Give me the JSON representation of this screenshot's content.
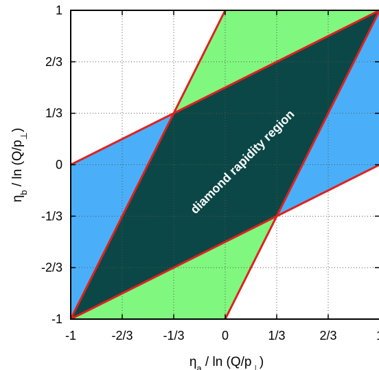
{
  "chart_data": {
    "type": "area",
    "xlabel": "η_a / ln (Q/p_⊥)",
    "ylabel": "η_b / ln (Q/p_⊥)",
    "xlim": [
      -1,
      1
    ],
    "ylim": [
      -1,
      1
    ],
    "grid": true,
    "x_ticks": [
      {
        "value": -1,
        "label": "-1"
      },
      {
        "value": -0.6667,
        "label": "-2/3"
      },
      {
        "value": -0.3333,
        "label": "-1/3"
      },
      {
        "value": 0,
        "label": "0"
      },
      {
        "value": 0.3333,
        "label": "1/3"
      },
      {
        "value": 0.6667,
        "label": "2/3"
      },
      {
        "value": 1,
        "label": "1"
      }
    ],
    "y_ticks": [
      {
        "value": -1,
        "label": "-1"
      },
      {
        "value": -0.6667,
        "label": "-2/3"
      },
      {
        "value": -0.3333,
        "label": "-1/3"
      },
      {
        "value": 0,
        "label": "0"
      },
      {
        "value": 0.3333,
        "label": "1/3"
      },
      {
        "value": 0.6667,
        "label": "2/3"
      },
      {
        "value": 1,
        "label": "1"
      }
    ],
    "regions": [
      {
        "id": "green-band",
        "color": "#80f77e",
        "polygon": [
          [
            0,
            -1
          ],
          [
            1,
            1
          ],
          [
            0,
            1
          ],
          [
            -1,
            -1
          ]
        ]
      },
      {
        "id": "blue-band",
        "color": "#4aaff8",
        "polygon": [
          [
            -1,
            0
          ],
          [
            1,
            1
          ],
          [
            1,
            0
          ],
          [
            -1,
            -1
          ]
        ]
      },
      {
        "id": "diamond",
        "color": "#0b4746",
        "polygon": [
          [
            -1,
            -1
          ],
          [
            0.3333,
            -0.3333
          ],
          [
            1,
            1
          ],
          [
            -0.3333,
            0.3333
          ]
        ]
      }
    ],
    "lines": [
      {
        "from": [
          -1,
          -1
        ],
        "to": [
          0,
          1
        ]
      },
      {
        "from": [
          0,
          -1
        ],
        "to": [
          1,
          1
        ]
      },
      {
        "from": [
          -1,
          0
        ],
        "to": [
          1,
          1
        ]
      },
      {
        "from": [
          -1,
          -1
        ],
        "to": [
          1,
          0
        ]
      }
    ],
    "line_color": "#e0201e",
    "annotations": [
      {
        "text": "diamond rapidity region",
        "x": 0.13,
        "y": 0.0
      }
    ]
  }
}
